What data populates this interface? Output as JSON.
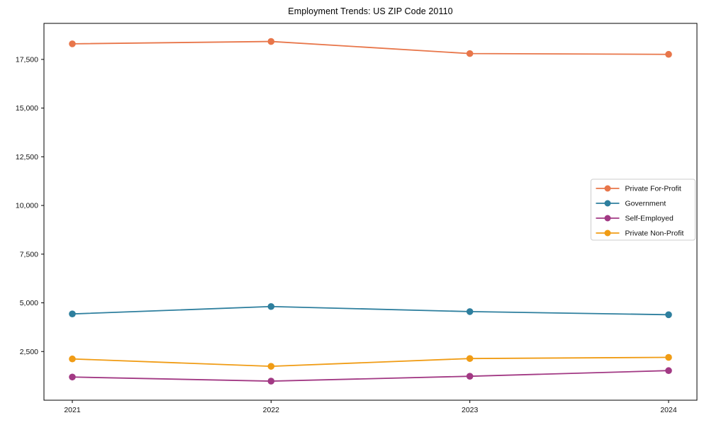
{
  "chart_data": {
    "type": "line",
    "title": "Employment Trends: US ZIP Code 20110",
    "xlabel": "",
    "ylabel": "",
    "x": [
      2021,
      2022,
      2023,
      2024
    ],
    "x_tick_labels": [
      "2021",
      "2022",
      "2023",
      "2024"
    ],
    "series": [
      {
        "name": "Private For-Profit",
        "color": "#e8764a",
        "values": [
          18300,
          18420,
          17800,
          17760
        ]
      },
      {
        "name": "Government",
        "color": "#2e7f9e",
        "values": [
          4430,
          4810,
          4550,
          4390
        ]
      },
      {
        "name": "Self-Employed",
        "color": "#a23984",
        "values": [
          1190,
          980,
          1230,
          1520
        ]
      },
      {
        "name": "Private Non-Profit",
        "color": "#f09c15",
        "values": [
          2120,
          1740,
          2140,
          2200
        ]
      }
    ],
    "ylim": [
      0,
      19350
    ],
    "yticks": [
      2500,
      5000,
      7500,
      10000,
      12500,
      15000,
      17500
    ],
    "ytick_labels": [
      "2,500",
      "5,000",
      "7,500",
      "10,000",
      "12,500",
      "15,000",
      "17,500"
    ],
    "grid": false,
    "legend_position": "center right",
    "axis_color": "#000000",
    "background_color": "#ffffff",
    "legend_border_color": "#cccccc"
  }
}
